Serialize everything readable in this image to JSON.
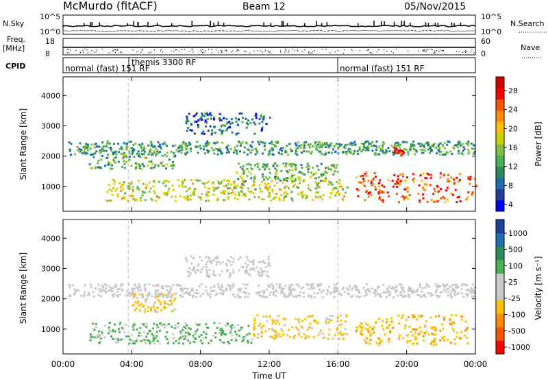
{
  "header": {
    "station": "McMurdo (fitACF)",
    "beam": "Beam 12",
    "date": "05/Nov/2015"
  },
  "status_panels": {
    "nsky_label": "N.Sky",
    "nsky_ticks": [
      "10^5",
      "10^0"
    ],
    "nsearch_label": "N.Search",
    "nsearch_ticks": [
      "10^5",
      "10^0"
    ],
    "freq_label": "Freq.",
    "freq_unit": "[MHz]",
    "freq_ticks": [
      "18",
      "8"
    ],
    "nave_label": "Nave",
    "nave_ticks": [
      "60",
      "0"
    ],
    "cpid_label": "CPID",
    "cpid_segments": [
      {
        "label": "normal (fast) 151 RF",
        "start_hour": 0,
        "end_hour": 16
      },
      {
        "label": "themis 3300 RF",
        "start_hour": 3.8,
        "end_hour": 16
      },
      {
        "label": "normal (fast) 151 RF",
        "start_hour": 16,
        "end_hour": 24
      }
    ]
  },
  "chart_data": [
    {
      "type": "heatmap",
      "title": "",
      "xlabel": "Time UT",
      "ylabel": "Slant Range [km]",
      "xlim": [
        0,
        24
      ],
      "ylim": [
        180,
        4620
      ],
      "x_ticks": [
        "00:00",
        "04:00",
        "08:00",
        "12:00",
        "16:00",
        "20:00",
        "00:00"
      ],
      "y_ticks": [
        1000,
        2000,
        3000,
        4000
      ],
      "colorbar": {
        "label": "Power [dB]",
        "ticks": [
          "28",
          "24",
          "20",
          "16",
          "12",
          "8",
          "4"
        ],
        "range": [
          0,
          30
        ]
      },
      "palette": [
        "#0000ff",
        "#2040a0",
        "#1f6fb0",
        "#2e8b57",
        "#4caf50",
        "#7fbf3f",
        "#c8d200",
        "#ffc000",
        "#ff8c00",
        "#ff5000",
        "#ff0000",
        "#d40000"
      ],
      "echo_bands": [
        {
          "center_km": 2300,
          "width_km": 220,
          "start_hour": 0.3,
          "end_hour": 24,
          "power_db": 10
        },
        {
          "center_km": 1900,
          "width_km": 300,
          "start_hour": 1.5,
          "end_hour": 6.5,
          "power_db": 11
        },
        {
          "center_km": 900,
          "width_km": 350,
          "start_hour": 2.5,
          "end_hour": 16.5,
          "power_db": 16
        },
        {
          "center_km": 1500,
          "width_km": 300,
          "start_hour": 10,
          "end_hour": 16,
          "power_db": 12
        },
        {
          "center_km": 1000,
          "width_km": 500,
          "start_hour": 17,
          "end_hour": 24,
          "power_db": 24
        },
        {
          "center_km": 2200,
          "width_km": 150,
          "start_hour": 19.2,
          "end_hour": 19.8,
          "power_db": 26
        },
        {
          "center_km": 3100,
          "width_km": 350,
          "start_hour": 7,
          "end_hour": 12,
          "power_db": 6
        }
      ]
    },
    {
      "type": "heatmap",
      "title": "",
      "xlabel": "Time UT",
      "ylabel": "Slant Range [km]",
      "xlim": [
        0,
        24
      ],
      "ylim": [
        180,
        4620
      ],
      "x_ticks": [
        "00:00",
        "04:00",
        "08:00",
        "12:00",
        "16:00",
        "20:00",
        "00:00"
      ],
      "y_ticks": [
        1000,
        2000,
        3000,
        4000
      ],
      "colorbar": {
        "label": "Velocity [m s⁻¹]",
        "ticks": [
          "1000",
          "500",
          "100",
          "25",
          "-25",
          "-100",
          "-500",
          "-1000"
        ],
        "range": [
          -1200,
          1200
        ]
      },
      "palette": [
        "#ff0000",
        "#ff5000",
        "#ff8c00",
        "#ffc000",
        "#c8c8c8",
        "#c8c8c8",
        "#4caf50",
        "#2e8b57",
        "#1f6fb0",
        "#2040a0"
      ],
      "echo_bands": [
        {
          "center_km": 2300,
          "width_km": 220,
          "start_hour": 0.3,
          "end_hour": 24,
          "velocity": 0
        },
        {
          "center_km": 900,
          "width_km": 350,
          "start_hour": 1.5,
          "end_hour": 11,
          "velocity": 300
        },
        {
          "center_km": 1900,
          "width_km": 300,
          "start_hour": 4,
          "end_hour": 6.5,
          "velocity": -300
        },
        {
          "center_km": 1100,
          "width_km": 400,
          "start_hour": 11,
          "end_hour": 16.5,
          "velocity": -300
        },
        {
          "center_km": 1000,
          "width_km": 500,
          "start_hour": 17,
          "end_hour": 23.5,
          "velocity": -400
        },
        {
          "center_km": 3100,
          "width_km": 350,
          "start_hour": 7,
          "end_hour": 12,
          "velocity": 0
        }
      ]
    }
  ]
}
